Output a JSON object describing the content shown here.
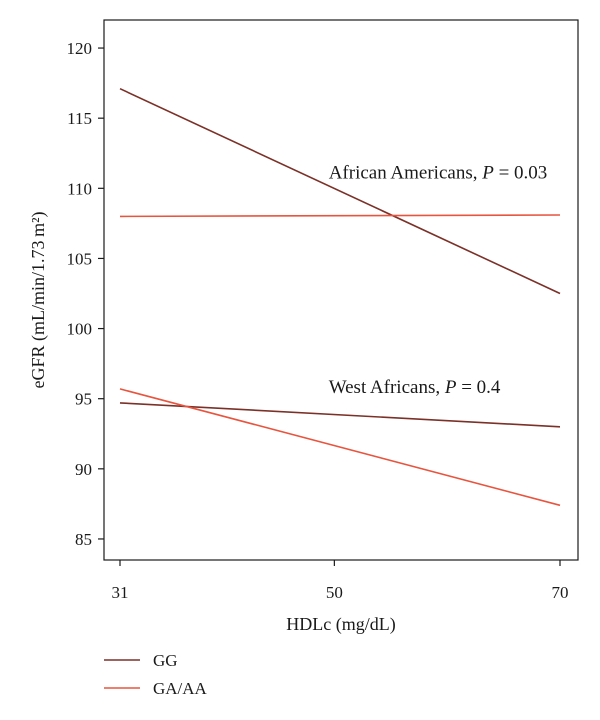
{
  "chart_data": {
    "type": "line",
    "xlabel": "HDLc (mg/dL)",
    "ylabel": "eGFR (mL/min/1.73 m²)",
    "xlim": [
      31,
      70
    ],
    "ylim": [
      83.5,
      122
    ],
    "x_ticks": [
      31,
      50,
      70
    ],
    "y_ticks": [
      85,
      90,
      95,
      100,
      105,
      110,
      115,
      120
    ],
    "grid": false,
    "legend_position": "bottom-left",
    "colors": {
      "GG": "#7b3128",
      "GA/AA": "#e8553f"
    },
    "series": [
      {
        "name": "GG",
        "group": "African Americans",
        "x": [
          31,
          70
        ],
        "y": [
          117.1,
          102.5
        ]
      },
      {
        "name": "GA/AA",
        "group": "African Americans",
        "x": [
          31,
          70
        ],
        "y": [
          108.0,
          108.1
        ]
      },
      {
        "name": "GG",
        "group": "West Africans",
        "x": [
          31,
          70
        ],
        "y": [
          94.7,
          93.0
        ]
      },
      {
        "name": "GA/AA",
        "group": "West Africans",
        "x": [
          31,
          70
        ],
        "y": [
          95.7,
          87.4
        ]
      }
    ],
    "annotations": [
      {
        "text_prefix": "African Americans, ",
        "p_symbol": "P",
        "p_rest": " = 0.03",
        "x": 49.5,
        "y": 110.7
      },
      {
        "text_prefix": "West Africans, ",
        "p_symbol": "P",
        "p_rest": " = 0.4",
        "x": 49.5,
        "y": 95.4
      }
    ],
    "legend": [
      {
        "label": "GG",
        "series": "GG"
      },
      {
        "label": "GA/AA",
        "series": "GA/AA"
      }
    ]
  }
}
